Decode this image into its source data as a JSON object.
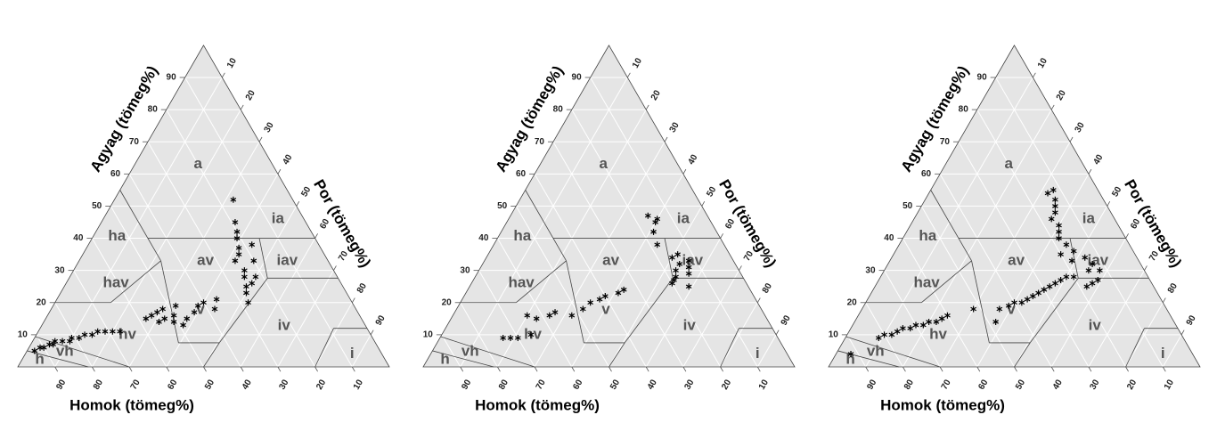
{
  "chart_data": [
    {
      "type": "ternary",
      "axis_labels": {
        "agyag": "Agyag (tömeg%)",
        "por": "Por (tömeg%)",
        "homok": "Homok (tömeg%)"
      },
      "agyag_ticks": [
        10,
        20,
        30,
        40,
        50,
        60,
        70,
        80,
        90
      ],
      "por_ticks": [
        10,
        20,
        30,
        40,
        50,
        60,
        70,
        80,
        90
      ],
      "homok_ticks": [
        90,
        80,
        70,
        60,
        50,
        40,
        30,
        20,
        10
      ],
      "regions": [
        "a",
        "ia",
        "ha",
        "av",
        "iav",
        "hav",
        "v",
        "iv",
        "hv",
        "vh",
        "h",
        "i"
      ],
      "color": "#000000",
      "points": {
        "homok": [
          93,
          91,
          90,
          88,
          87,
          86,
          84,
          82,
          81,
          79,
          77,
          75,
          73,
          71,
          69,
          67,
          58,
          56,
          55,
          54,
          53,
          52,
          51,
          50,
          49,
          48,
          47,
          44,
          42,
          40,
          38,
          36,
          28,
          27,
          26,
          25,
          24,
          25,
          23,
          22,
          21,
          20,
          19,
          22,
          24,
          20,
          18,
          16
        ],
        "agyag": [
          5,
          6,
          6,
          7,
          7,
          8,
          8,
          8,
          9,
          9,
          10,
          10,
          11,
          11,
          11,
          11,
          15,
          16,
          14,
          17,
          15,
          18,
          14,
          16,
          13,
          19,
          15,
          17,
          19,
          20,
          18,
          21,
          20,
          23,
          25,
          28,
          30,
          33,
          35,
          37,
          40,
          42,
          45,
          28,
          26,
          33,
          38,
          52
        ]
      }
    },
    {
      "type": "ternary",
      "axis_labels": {
        "agyag": "Agyag (tömeg%)",
        "por": "Por (tömeg%)",
        "homok": "Homok (tömeg%)"
      },
      "agyag_ticks": [
        10,
        20,
        30,
        40,
        50,
        60,
        70,
        80,
        90
      ],
      "por_ticks": [
        10,
        20,
        30,
        40,
        50,
        60,
        70,
        80,
        90
      ],
      "homok_ticks": [
        90,
        80,
        70,
        60,
        50,
        40,
        30,
        20,
        10
      ],
      "regions": [
        "a",
        "ia",
        "ha",
        "av",
        "iav",
        "hav",
        "v",
        "iv",
        "hv",
        "vh",
        "h",
        "i"
      ],
      "color": "#000000",
      "points": {
        "homok": [
          74,
          72,
          70,
          66,
          64,
          62,
          58,
          56,
          52,
          48,
          45,
          42,
          40,
          36,
          34,
          20,
          18,
          17,
          15,
          16,
          14,
          13,
          19,
          16,
          14,
          12,
          18,
          17,
          15,
          16,
          14
        ],
        "agyag": [
          9,
          9,
          9,
          10,
          16,
          15,
          16,
          17,
          16,
          18,
          20,
          21,
          22,
          23,
          24,
          26,
          28,
          30,
          32,
          34,
          29,
          31,
          27,
          25,
          35,
          33,
          38,
          42,
          45,
          47,
          46
        ]
      }
    },
    {
      "type": "ternary",
      "axis_labels": {
        "agyag": "Agyag (tömeg%)",
        "por": "Por (tömeg%)",
        "homok": "Homok (tömeg%)"
      },
      "agyag_ticks": [
        10,
        20,
        30,
        40,
        50,
        60,
        70,
        80,
        90
      ],
      "por_ticks": [
        10,
        20,
        30,
        40,
        50,
        60,
        70,
        80,
        90
      ],
      "homok_ticks": [
        90,
        80,
        70,
        60,
        50,
        40,
        30,
        20,
        10
      ],
      "regions": [
        "a",
        "ia",
        "ha",
        "av",
        "iav",
        "hav",
        "v",
        "iv",
        "hv",
        "vh",
        "h",
        "i"
      ],
      "color": "#000000",
      "points": {
        "homok": [
          92,
          82,
          80,
          78,
          76,
          74,
          72,
          70,
          68,
          66,
          64,
          62,
          60,
          52,
          48,
          45,
          42,
          40,
          38,
          36,
          34,
          32,
          30,
          28,
          26,
          24,
          22,
          20,
          18,
          16,
          14,
          15,
          13,
          12,
          14,
          16,
          17,
          18,
          17,
          16,
          17,
          15,
          14,
          13,
          14,
          12,
          18,
          20
        ],
        "agyag": [
          4,
          9,
          10,
          10,
          11,
          12,
          12,
          13,
          13,
          14,
          14,
          15,
          16,
          18,
          14,
          18,
          19,
          20,
          20,
          21,
          22,
          23,
          24,
          25,
          26,
          27,
          28,
          28,
          25,
          26,
          27,
          30,
          32,
          30,
          34,
          36,
          38,
          40,
          42,
          44,
          46,
          48,
          50,
          52,
          54,
          55,
          33,
          35
        ]
      }
    }
  ]
}
